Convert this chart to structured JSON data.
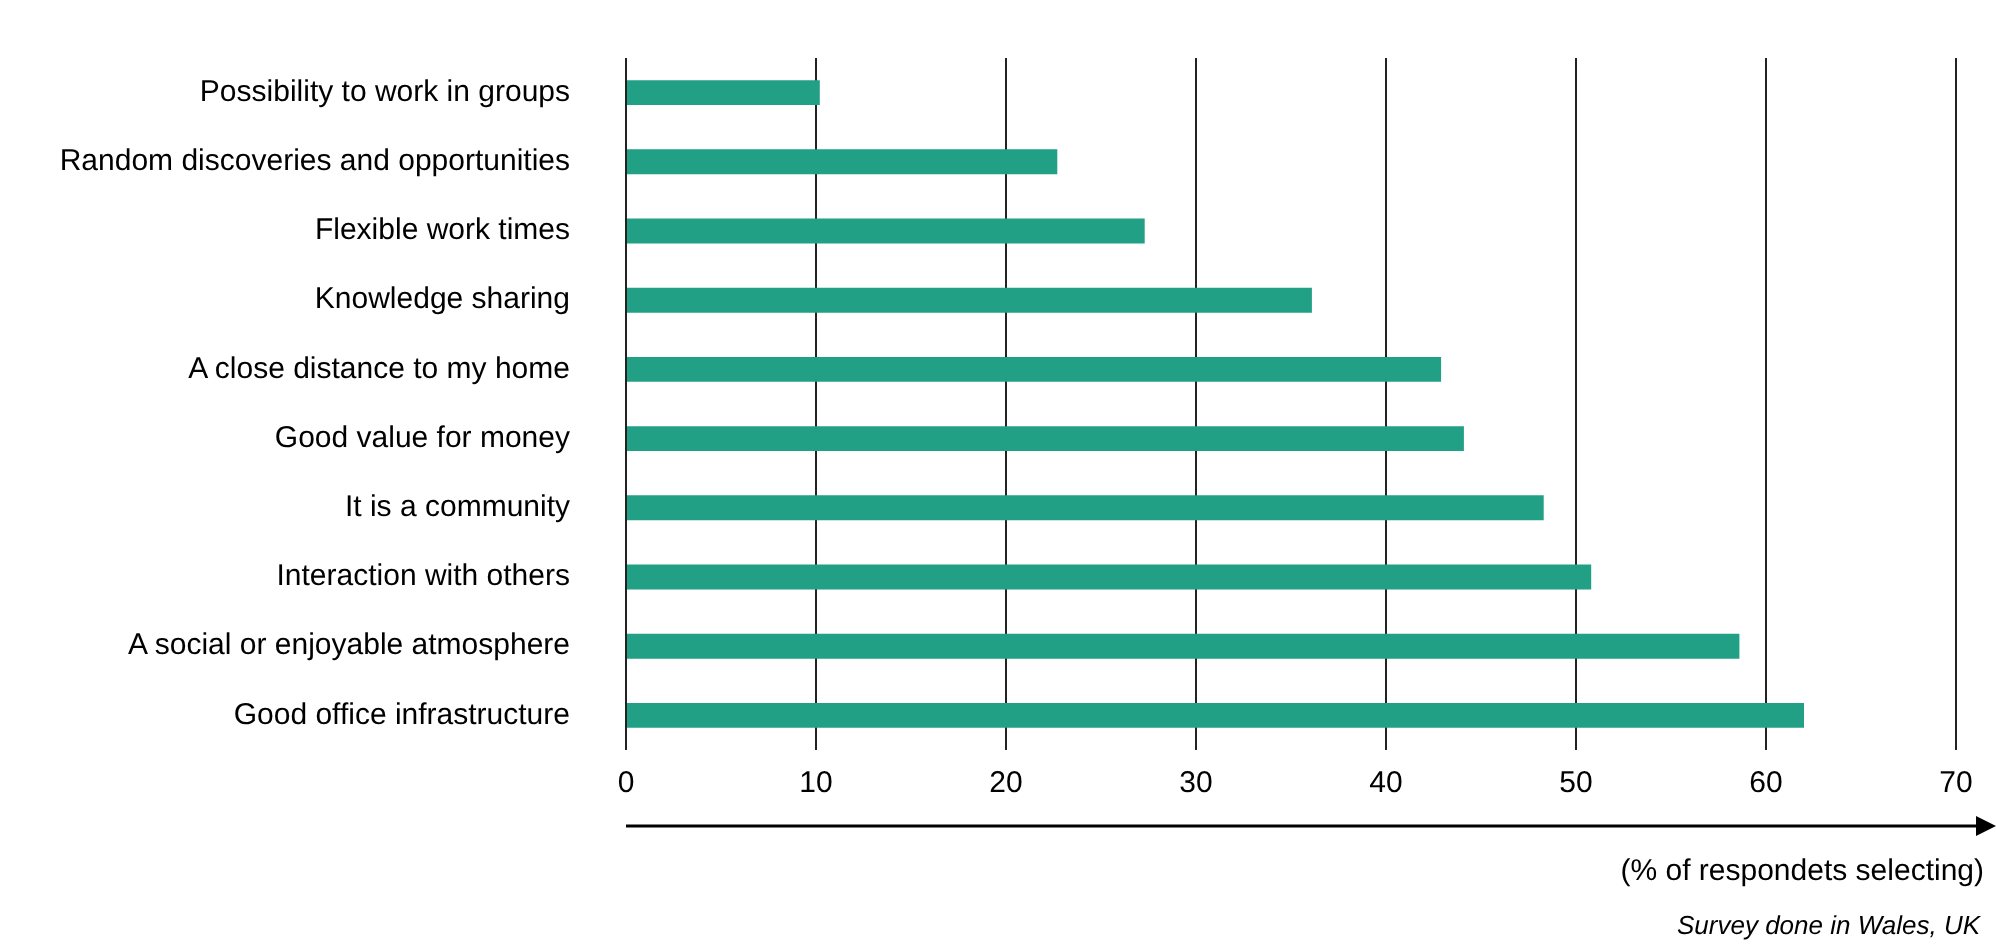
{
  "chart_data": {
    "type": "bar",
    "orientation": "horizontal",
    "categories": [
      "Possibility to work in groups",
      "Random discoveries and opportunities",
      "Flexible work times",
      "Knowledge sharing",
      "A close distance to my home",
      "Good value for money",
      "It is a community",
      "Interaction with others",
      "A social or enjoyable atmosphere",
      "Good office infrastructure"
    ],
    "values": [
      10.2,
      22.7,
      27.3,
      36.1,
      42.9,
      44.1,
      48.3,
      50.8,
      58.6,
      62.0
    ],
    "color": "#22a085",
    "xlim": [
      0,
      70
    ],
    "xticks": [
      0,
      10,
      20,
      30,
      40,
      50,
      60,
      70
    ],
    "grid": "x",
    "xlabel": "(% of respondets selecting)",
    "annotations": [
      "Survey done in Wales, UK"
    ]
  }
}
